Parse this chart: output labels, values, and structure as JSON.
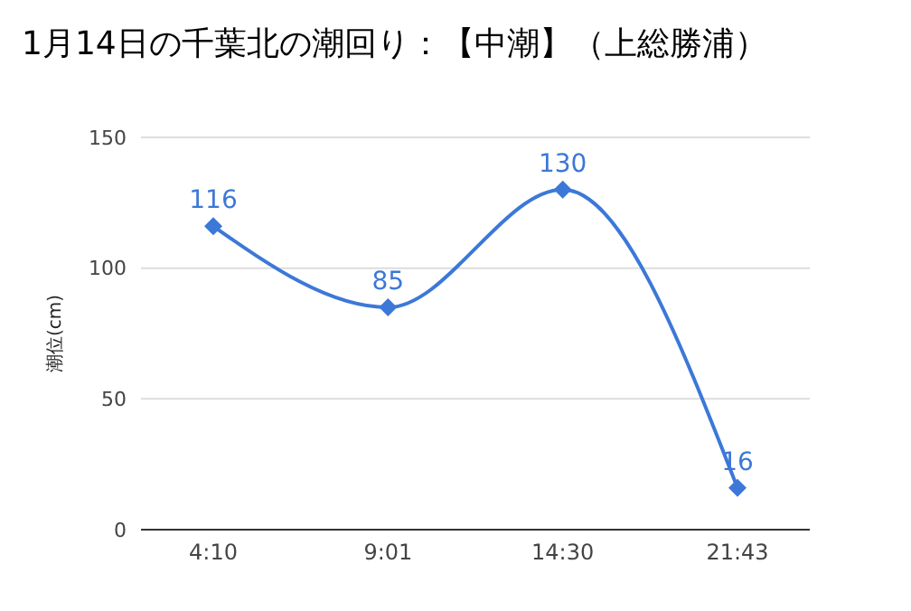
{
  "chart_data": {
    "type": "line",
    "title": "1月14日の千葉北の潮回り：【中潮】（上総勝浦）",
    "ylabel": "潮位(cm)",
    "categories": [
      "4:10",
      "9:01",
      "14:30",
      "21:43"
    ],
    "series": [
      {
        "color": "#3c78d8",
        "values": [
          116,
          85,
          130,
          16
        ]
      }
    ],
    "ylim": [
      0,
      150
    ],
    "yticks": [
      0,
      50,
      100,
      150
    ],
    "grid": "y",
    "marker": "diamond",
    "line_style": "solid",
    "data_labels": true,
    "legend": false
  }
}
